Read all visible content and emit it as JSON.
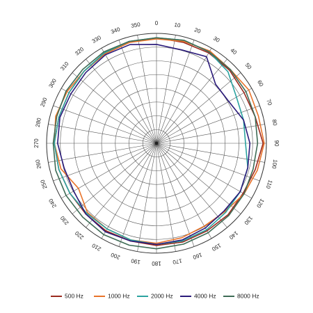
{
  "chart_data": {
    "type": "line",
    "projection": "polar",
    "title": "",
    "xlabel": "",
    "ylabel": "",
    "angle_ticks": [
      "0",
      "10",
      "20",
      "30",
      "40",
      "50",
      "60",
      "70",
      "80",
      "90",
      "100",
      "110",
      "120",
      "130",
      "140",
      "150",
      "160",
      "170",
      "180",
      "190",
      "200",
      "210",
      "220",
      "230",
      "240",
      "250",
      "260",
      "270",
      "280",
      "290",
      "300",
      "310",
      "320",
      "330",
      "340",
      "350"
    ],
    "radial_rings": 8,
    "grid": true,
    "legend_position": "bottom",
    "series": [
      {
        "name": "500 Hz",
        "color": "#9a2a1e",
        "angles": [
          0,
          15,
          30,
          45,
          60,
          75,
          90,
          105,
          120,
          135,
          150,
          165,
          180,
          195,
          210,
          225,
          240,
          255,
          270,
          285,
          300,
          315,
          330,
          345
        ],
        "values": [
          0.96,
          0.95,
          0.95,
          0.94,
          0.92,
          0.93,
          0.97,
          0.93,
          0.91,
          0.92,
          0.92,
          0.93,
          0.93,
          0.92,
          0.92,
          0.91,
          0.91,
          0.92,
          0.93,
          0.92,
          0.92,
          0.93,
          0.94,
          0.95
        ]
      },
      {
        "name": "1000 Hz",
        "color": "#e8732a",
        "angles": [
          0,
          15,
          30,
          45,
          60,
          75,
          90,
          105,
          120,
          135,
          150,
          165,
          180,
          195,
          210,
          225,
          240,
          255,
          270,
          285,
          300,
          315,
          330,
          345
        ],
        "values": [
          0.95,
          0.96,
          0.97,
          0.95,
          0.97,
          0.96,
          0.98,
          0.95,
          0.92,
          0.88,
          0.87,
          0.89,
          0.91,
          0.91,
          0.9,
          0.89,
          0.82,
          0.9,
          0.93,
          0.95,
          0.94,
          0.93,
          0.94,
          0.95
        ]
      },
      {
        "name": "2000 Hz",
        "color": "#2ba3a0",
        "angles": [
          0,
          15,
          30,
          45,
          60,
          75,
          90,
          105,
          120,
          135,
          150,
          165,
          180,
          195,
          210,
          225,
          240,
          255,
          270,
          285,
          300,
          315,
          330,
          345
        ],
        "values": [
          0.96,
          0.97,
          0.96,
          0.92,
          0.84,
          0.82,
          0.81,
          0.86,
          0.88,
          0.89,
          0.91,
          0.92,
          0.92,
          0.91,
          0.9,
          0.9,
          0.91,
          0.92,
          0.93,
          0.92,
          0.92,
          0.93,
          0.95,
          0.96
        ]
      },
      {
        "name": "4000 Hz",
        "color": "#2a1a7a",
        "angles": [
          0,
          15,
          30,
          45,
          60,
          75,
          90,
          105,
          120,
          135,
          150,
          165,
          180,
          195,
          210,
          225,
          240,
          255,
          270,
          285,
          300,
          315,
          330,
          345
        ],
        "values": [
          0.9,
          0.88,
          0.91,
          0.76,
          0.76,
          0.82,
          0.85,
          0.86,
          0.88,
          0.87,
          0.89,
          0.91,
          0.92,
          0.92,
          0.93,
          0.91,
          0.87,
          0.87,
          0.9,
          0.91,
          0.9,
          0.91,
          0.93,
          0.93
        ]
      },
      {
        "name": "8000 Hz",
        "color": "#3e6b55",
        "angles": [
          0,
          15,
          30,
          45,
          60,
          75,
          90,
          105,
          120,
          135,
          150,
          165,
          180,
          195,
          210,
          225,
          240,
          255,
          270,
          285,
          300,
          315,
          330,
          345
        ],
        "values": [
          0.96,
          0.97,
          0.96,
          0.95,
          0.94,
          0.93,
          0.92,
          0.91,
          0.92,
          0.93,
          0.94,
          0.95,
          0.96,
          0.96,
          0.96,
          0.95,
          0.95,
          0.95,
          0.94,
          0.94,
          0.95,
          0.95,
          0.96,
          0.96
        ]
      }
    ]
  }
}
